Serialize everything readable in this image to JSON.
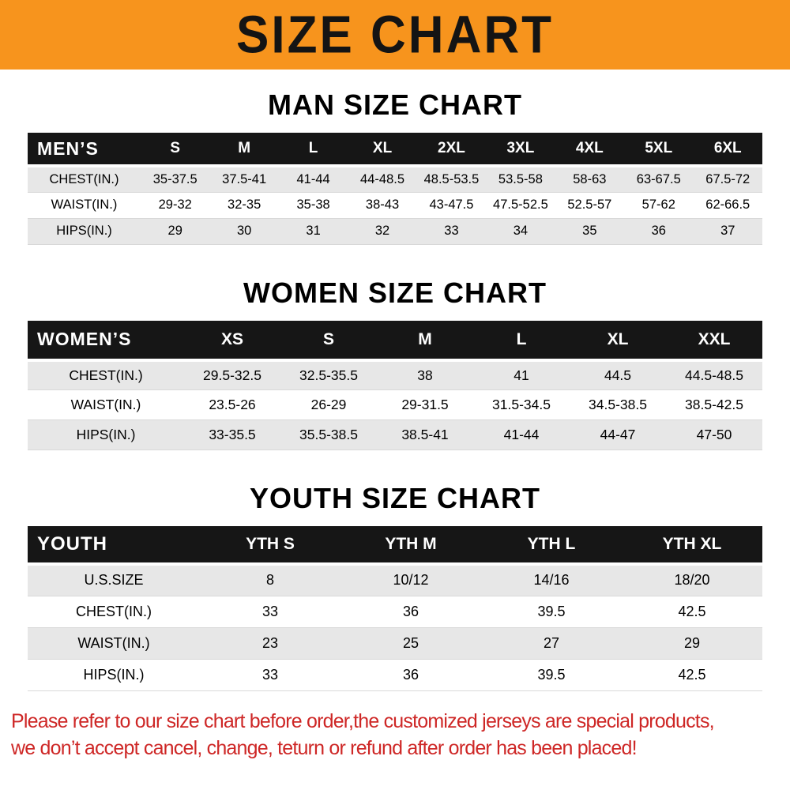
{
  "banner": {
    "title": "SIZE CHART"
  },
  "sections": [
    {
      "heading": "MAN SIZE CHART",
      "table": {
        "header": [
          "MEN’S",
          "S",
          "M",
          "L",
          "XL",
          "2XL",
          "3XL",
          "4XL",
          "5XL",
          "6XL"
        ],
        "rows": [
          [
            "CHEST(IN.)",
            "35-37.5",
            "37.5-41",
            "41-44",
            "44-48.5",
            "48.5-53.5",
            "53.5-58",
            "58-63",
            "63-67.5",
            "67.5-72"
          ],
          [
            "WAIST(IN.)",
            "29-32",
            "32-35",
            "35-38",
            "38-43",
            "43-47.5",
            "47.5-52.5",
            "52.5-57",
            "57-62",
            "62-66.5"
          ],
          [
            "HIPS(IN.)",
            "29",
            "30",
            "31",
            "32",
            "33",
            "34",
            "35",
            "36",
            "37"
          ]
        ]
      }
    },
    {
      "heading": "WOMEN SIZE CHART",
      "table": {
        "header": [
          "WOMEN’S",
          "XS",
          "S",
          "M",
          "L",
          "XL",
          "XXL"
        ],
        "rows": [
          [
            "CHEST(IN.)",
            "29.5-32.5",
            "32.5-35.5",
            "38",
            "41",
            "44.5",
            "44.5-48.5"
          ],
          [
            "WAIST(IN.)",
            "23.5-26",
            "26-29",
            "29-31.5",
            "31.5-34.5",
            "34.5-38.5",
            "38.5-42.5"
          ],
          [
            "HIPS(IN.)",
            "33-35.5",
            "35.5-38.5",
            "38.5-41",
            "41-44",
            "44-47",
            "47-50"
          ]
        ]
      }
    },
    {
      "heading": "YOUTH SIZE CHART",
      "table": {
        "header": [
          "YOUTH",
          "YTH S",
          "YTH M",
          "YTH L",
          "YTH XL"
        ],
        "rows": [
          [
            "U.S.SIZE",
            "8",
            "10/12",
            "14/16",
            "18/20"
          ],
          [
            "CHEST(IN.)",
            "33",
            "36",
            "39.5",
            "42.5"
          ],
          [
            "WAIST(IN.)",
            "23",
            "25",
            "27",
            "29"
          ],
          [
            "HIPS(IN.)",
            "33",
            "36",
            "39.5",
            "42.5"
          ]
        ]
      }
    }
  ],
  "footer": {
    "line1": "Please refer to our size chart before order,the customized jerseys are special products,",
    "line2": "we don’t accept cancel, change, teturn or refund after order has been placed!"
  },
  "colors": {
    "banner_orange": "#F7941D",
    "header_black": "#161616",
    "stripe_gray": "#E7E7E7",
    "footer_red": "#CE2726"
  }
}
